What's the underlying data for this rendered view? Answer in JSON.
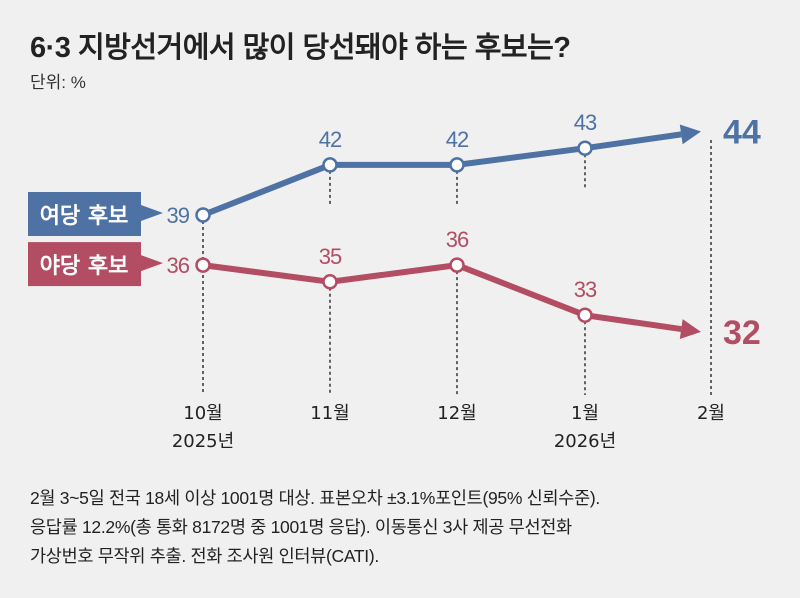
{
  "title": "6·3 지방선거에서 많이 당선돼야 하는 후보는?",
  "unit": "단위: %",
  "chart_data": {
    "type": "line",
    "categories": [
      "10월",
      "11월",
      "12월",
      "1월",
      "2월"
    ],
    "year_labels": [
      "2025년",
      "",
      "",
      "2026년",
      ""
    ],
    "series": [
      {
        "name": "여당 후보",
        "values": [
          39,
          42,
          42,
          43,
          44
        ],
        "color": "#4e72a4"
      },
      {
        "name": "야당 후보",
        "values": [
          36,
          35,
          36,
          33,
          32
        ],
        "color": "#b24d63"
      }
    ],
    "grid": false,
    "legend": "left"
  },
  "footnote": [
    "2월 3~5일 전국 18세 이상 1001명 대상. 표본오차 ±3.1%포인트(95% 신뢰수준).",
    "응답률 12.2%(총 통화 8172명 중 1001명 응답). 이동통신 3사 제공 무선전화",
    "가상번호 무작위 추출. 전화 조사원 인터뷰(CATI)."
  ]
}
